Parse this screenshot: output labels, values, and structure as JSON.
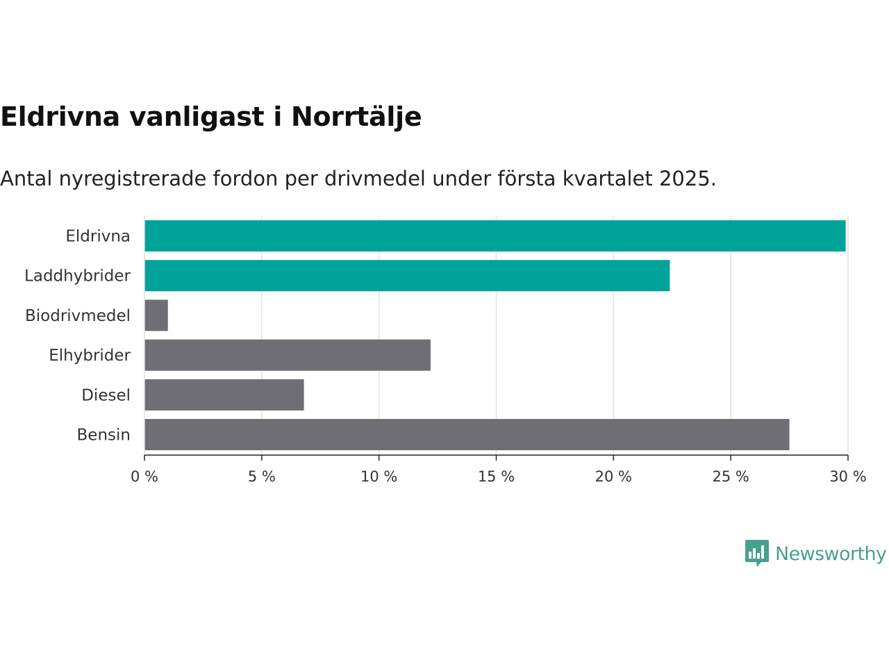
{
  "title": "Eldrivna vanligast i Norrtälje",
  "subtitle": "Antal nyregistrerade fordon per drivmedel under första kvartalet 2025.",
  "brand": {
    "name": "Newsworthy",
    "color": "#47a08e",
    "icon": "bar-chart-speech-bubble-icon"
  },
  "chart_data": {
    "type": "bar",
    "orientation": "horizontal",
    "categories": [
      "Eldrivna",
      "Laddhybrider",
      "Biodrivmedel",
      "Elhybrider",
      "Diesel",
      "Bensin"
    ],
    "values": [
      29.9,
      22.4,
      1.0,
      12.2,
      6.8,
      27.5
    ],
    "colors": [
      "#00a39a",
      "#00a39a",
      "#6f6e74",
      "#6f6e74",
      "#6f6e74",
      "#6f6e74"
    ],
    "xlim": [
      0,
      30
    ],
    "xticks": [
      0,
      5,
      10,
      15,
      20,
      25,
      30
    ],
    "xtick_labels": [
      "0 %",
      "5 %",
      "10 %",
      "15 %",
      "20 %",
      "25 %",
      "30 %"
    ],
    "grid": "vertical",
    "legend": "none"
  }
}
